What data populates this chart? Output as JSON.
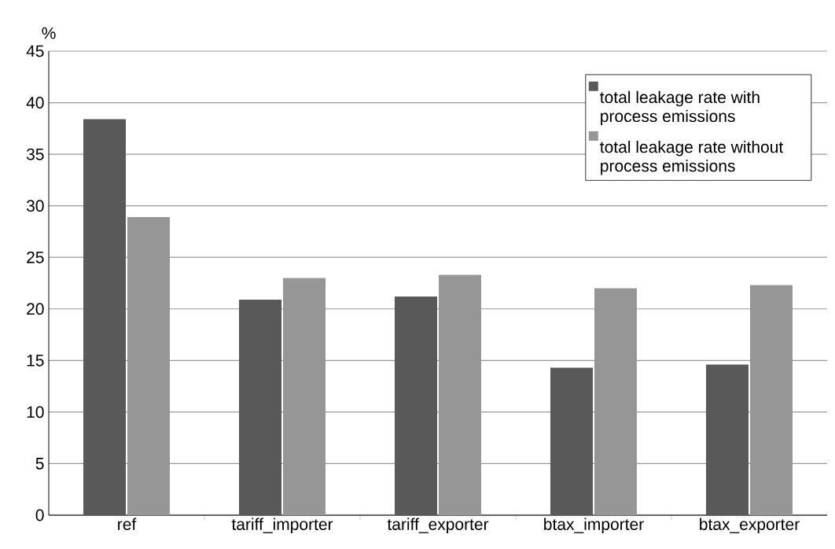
{
  "chart_data": {
    "type": "bar",
    "ylabel": "%",
    "categories": [
      "ref",
      "tariff_importer",
      "tariff_exporter",
      "btax_importer",
      "btax_exporter"
    ],
    "series": [
      {
        "name": "total leakage rate with process emissions",
        "color": "#595959",
        "values": [
          38.4,
          20.9,
          21.2,
          14.3,
          14.6
        ]
      },
      {
        "name": "total leakage rate without process emissions",
        "color": "#969696",
        "values": [
          28.9,
          23.0,
          23.3,
          22.0,
          22.3
        ]
      }
    ],
    "ylim": [
      0,
      45
    ],
    "yticks": [
      0,
      5,
      10,
      15,
      20,
      25,
      30,
      35,
      40,
      45
    ],
    "grid": "y",
    "legend": "top right"
  }
}
